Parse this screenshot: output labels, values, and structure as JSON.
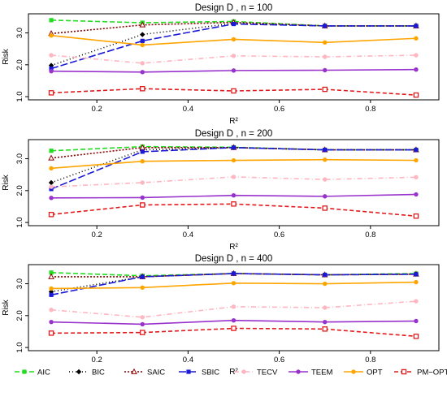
{
  "chart_data": [
    {
      "type": "line",
      "title": "Design D , n = 100",
      "xlabel": "R²",
      "ylabel": "Risk",
      "xlim": [
        0.05,
        0.95
      ],
      "ylim": [
        0.9,
        3.6
      ],
      "xticks": [
        "0.2",
        "0.4",
        "0.6",
        "0.8"
      ],
      "yticks": [
        "1.0",
        "2.0",
        "3.0"
      ],
      "x": [
        0.1,
        0.3,
        0.5,
        0.7,
        0.9
      ],
      "series": [
        {
          "name": "AIC",
          "values": [
            3.4,
            3.32,
            3.36,
            3.22,
            3.22
          ]
        },
        {
          "name": "BIC",
          "values": [
            1.98,
            2.95,
            3.3,
            3.22,
            3.22
          ]
        },
        {
          "name": "SAIC",
          "values": [
            2.98,
            3.25,
            3.33,
            3.22,
            3.22
          ]
        },
        {
          "name": "SBIC",
          "values": [
            1.88,
            2.75,
            3.28,
            3.22,
            3.22
          ]
        },
        {
          "name": "TECV",
          "values": [
            2.3,
            2.05,
            2.28,
            2.25,
            2.3
          ]
        },
        {
          "name": "TEEM",
          "values": [
            1.8,
            1.77,
            1.82,
            1.83,
            1.85
          ]
        },
        {
          "name": "OPT",
          "values": [
            2.92,
            2.62,
            2.8,
            2.7,
            2.83
          ]
        },
        {
          "name": "PM−OPT",
          "values": [
            1.12,
            1.25,
            1.18,
            1.23,
            1.05
          ]
        }
      ]
    },
    {
      "type": "line",
      "title": "Design D , n = 200",
      "xlabel": "R²",
      "ylabel": "Risk",
      "xlim": [
        0.05,
        0.95
      ],
      "ylim": [
        0.9,
        3.6
      ],
      "xticks": [
        "0.2",
        "0.4",
        "0.6",
        "0.8"
      ],
      "yticks": [
        "1.0",
        "2.0",
        "3.0"
      ],
      "x": [
        0.1,
        0.3,
        0.5,
        0.7,
        0.9
      ],
      "series": [
        {
          "name": "AIC",
          "values": [
            3.25,
            3.38,
            3.36,
            3.28,
            3.28
          ]
        },
        {
          "name": "BIC",
          "values": [
            2.25,
            3.28,
            3.35,
            3.28,
            3.28
          ]
        },
        {
          "name": "SAIC",
          "values": [
            3.02,
            3.35,
            3.35,
            3.28,
            3.28
          ]
        },
        {
          "name": "SBIC",
          "values": [
            2.05,
            3.22,
            3.35,
            3.28,
            3.28
          ]
        },
        {
          "name": "TECV",
          "values": [
            2.12,
            2.25,
            2.43,
            2.35,
            2.42
          ]
        },
        {
          "name": "TEEM",
          "values": [
            1.77,
            1.78,
            1.85,
            1.82,
            1.88
          ]
        },
        {
          "name": "OPT",
          "values": [
            2.7,
            2.92,
            2.95,
            2.97,
            2.95
          ]
        },
        {
          "name": "PM−OPT",
          "values": [
            1.25,
            1.55,
            1.58,
            1.45,
            1.2
          ]
        }
      ]
    },
    {
      "type": "line",
      "title": "Design D , n = 400",
      "xlabel": "R²",
      "ylabel": "Risk",
      "xlim": [
        0.05,
        0.95
      ],
      "ylim": [
        0.9,
        3.6
      ],
      "xticks": [
        "0.2",
        "0.4",
        "0.6",
        "0.8"
      ],
      "yticks": [
        "1.0",
        "2.0",
        "3.0"
      ],
      "x": [
        0.1,
        0.3,
        0.5,
        0.7,
        0.9
      ],
      "series": [
        {
          "name": "AIC",
          "values": [
            3.35,
            3.25,
            3.32,
            3.28,
            3.32
          ]
        },
        {
          "name": "BIC",
          "values": [
            2.75,
            3.22,
            3.32,
            3.28,
            3.3
          ]
        },
        {
          "name": "SAIC",
          "values": [
            3.22,
            3.22,
            3.32,
            3.28,
            3.3
          ]
        },
        {
          "name": "SBIC",
          "values": [
            2.65,
            3.22,
            3.32,
            3.28,
            3.3
          ]
        },
        {
          "name": "TECV",
          "values": [
            2.18,
            1.95,
            2.28,
            2.25,
            2.45
          ]
        },
        {
          "name": "TEEM",
          "values": [
            1.8,
            1.73,
            1.85,
            1.8,
            1.83
          ]
        },
        {
          "name": "OPT",
          "values": [
            2.85,
            2.88,
            3.02,
            3.0,
            3.05
          ]
        },
        {
          "name": "PM−OPT",
          "values": [
            1.45,
            1.47,
            1.6,
            1.58,
            1.35
          ]
        }
      ]
    }
  ],
  "legend": {
    "placement": "bottom",
    "items": [
      {
        "name": "AIC",
        "color": "#22dd22",
        "dash": "6,3",
        "marker": "square"
      },
      {
        "name": "BIC",
        "color": "#000000",
        "dash": "1,3",
        "marker": "diamond"
      },
      {
        "name": "SAIC",
        "color": "#8b0000",
        "dash": "2,2",
        "marker": "triangle"
      },
      {
        "name": "SBIC",
        "color": "#1a1ad6",
        "dash": "9,3",
        "marker": "square"
      },
      {
        "name": "TECV",
        "color": "#ffb6c1",
        "dash": "6,3,1,3",
        "marker": "circle"
      },
      {
        "name": "TEEM",
        "color": "#9932cc",
        "dash": "",
        "marker": "circle"
      },
      {
        "name": "OPT",
        "color": "#ffa500",
        "dash": "",
        "marker": "circle"
      },
      {
        "name": "PM−OPT",
        "color": "#e31a1c",
        "dash": "5,3",
        "marker": "square-open"
      }
    ]
  }
}
